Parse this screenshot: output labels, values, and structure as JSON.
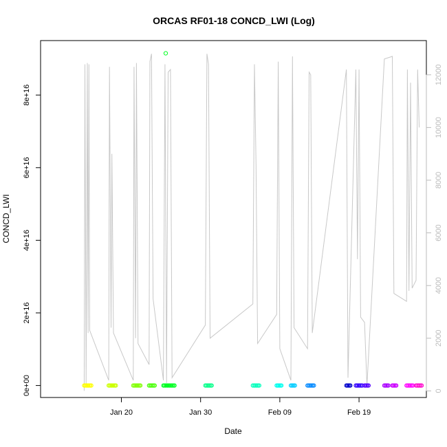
{
  "chart_data": {
    "type": "scatter",
    "title": "ORCAS RF01-18 CONCD_LWI (Log)",
    "xlabel": "Date",
    "ylabel": "CONCD_LWI",
    "x_ticks": [
      {
        "date": "Jan 20",
        "day": 20
      },
      {
        "date": "Jan 30",
        "day": 30
      },
      {
        "date": "Feb 09",
        "day": 40
      },
      {
        "date": "Feb 19",
        "day": 50
      }
    ],
    "xlim_days": [
      9.8,
      58.5
    ],
    "y_ticks": [
      {
        "label": "0e+00",
        "value": 0
      },
      {
        "label": "2e+16",
        "value": 2e+16
      },
      {
        "label": "4e+16",
        "value": 4e+16
      },
      {
        "label": "6e+16",
        "value": 6e+16
      },
      {
        "label": "8e+16",
        "value": 8e+16
      }
    ],
    "ylim": [
      -3300000000000000.0,
      9.5e+16
    ],
    "y2_ticks": [
      {
        "label": "0",
        "value": 0
      },
      {
        "label": "2000",
        "value": 2000
      },
      {
        "label": "4000",
        "value": 4000
      },
      {
        "label": "6000",
        "value": 6000
      },
      {
        "label": "8000",
        "value": 8000
      },
      {
        "label": "10000",
        "value": 10000
      },
      {
        "label": "12000",
        "value": 12000
      }
    ],
    "y2lim": [
      -250,
      13300
    ],
    "series": [
      {
        "color": "#ffff00",
        "x_range": [
          15.3,
          16.2
        ],
        "values": [
          0
        ]
      },
      {
        "color": "#ccff00",
        "x_range": [
          18.4,
          19.3
        ],
        "values": [
          0
        ]
      },
      {
        "color": "#80ff00",
        "x_range": [
          21.5,
          22.4
        ],
        "values": [
          0
        ]
      },
      {
        "color": "#44ff00",
        "x_range": [
          23.5,
          24.2
        ],
        "values": [
          0
        ]
      },
      {
        "color": "#00ff22",
        "x_range": [
          25.3,
          26.7
        ],
        "outlier": {
          "x": 25.6,
          "y": 9.15e+16
        },
        "values": [
          0
        ]
      },
      {
        "color": "#00ff88",
        "x_range": [
          30.6,
          31.4
        ],
        "values": [
          0
        ]
      },
      {
        "color": "#00ffbb",
        "x_range": [
          36.6,
          37.4
        ],
        "values": [
          0
        ]
      },
      {
        "color": "#00ffee",
        "x_range": [
          39.6,
          40.2
        ],
        "values": [
          0
        ]
      },
      {
        "color": "#00ccff",
        "x_range": [
          41.4,
          41.9
        ],
        "values": [
          0
        ]
      },
      {
        "color": "#0088ff",
        "x_range": [
          43.5,
          44.3
        ],
        "values": [
          0
        ]
      },
      {
        "color": "#0000cc",
        "x_range": [
          48.4,
          48.9
        ],
        "values": [
          0
        ]
      },
      {
        "color": "#3300ff",
        "x_range": [
          49.6,
          50.4
        ],
        "values": [
          0
        ]
      },
      {
        "color": "#5500ff",
        "x_range": [
          50.7,
          51.2
        ],
        "values": [
          0
        ]
      },
      {
        "color": "#aa00ff",
        "x_range": [
          53.2,
          53.7
        ],
        "values": [
          0
        ]
      },
      {
        "color": "#cc00ff",
        "x_range": [
          54.2,
          54.7
        ],
        "values": [
          0
        ]
      },
      {
        "color": "#ff00ff",
        "x_range": [
          56.0,
          56.8
        ],
        "values": [
          0
        ]
      },
      {
        "color": "#ff00cc",
        "x_range": [
          57.2,
          57.9
        ],
        "values": [
          0
        ]
      }
    ],
    "altitude_line_color": "#c8c8c8",
    "altitude_trace": [
      [
        15.3,
        0
      ],
      [
        15.4,
        12400
      ],
      [
        15.55,
        200
      ],
      [
        15.7,
        12450
      ],
      [
        15.8,
        2200
      ],
      [
        15.9,
        12400
      ],
      [
        16.0,
        2300
      ],
      [
        18.4,
        400
      ],
      [
        18.5,
        12300
      ],
      [
        18.7,
        2400
      ],
      [
        18.8,
        9000
      ],
      [
        19.0,
        2200
      ],
      [
        21.5,
        400
      ],
      [
        21.6,
        12300
      ],
      [
        21.8,
        2000
      ],
      [
        21.9,
        12450
      ],
      [
        22.1,
        1800
      ],
      [
        23.5,
        1000
      ],
      [
        23.6,
        12500
      ],
      [
        23.8,
        12800
      ],
      [
        24.0,
        3500
      ],
      [
        25.3,
        400
      ],
      [
        25.5,
        12400
      ],
      [
        25.7,
        300
      ],
      [
        25.9,
        12100
      ],
      [
        26.2,
        12200
      ],
      [
        26.4,
        500
      ],
      [
        30.6,
        2500
      ],
      [
        30.8,
        12800
      ],
      [
        31.0,
        12400
      ],
      [
        31.2,
        2000
      ],
      [
        36.6,
        3300
      ],
      [
        36.8,
        12400
      ],
      [
        37.0,
        8600
      ],
      [
        37.2,
        1800
      ],
      [
        39.6,
        2900
      ],
      [
        39.8,
        12500
      ],
      [
        40.0,
        1600
      ],
      [
        41.4,
        400
      ],
      [
        41.6,
        12700
      ],
      [
        41.8,
        2400
      ],
      [
        43.5,
        1600
      ],
      [
        43.7,
        12100
      ],
      [
        43.9,
        12000
      ],
      [
        44.1,
        2200
      ],
      [
        48.4,
        12200
      ],
      [
        48.6,
        500
      ],
      [
        49.6,
        12200
      ],
      [
        49.8,
        5000
      ],
      [
        50.0,
        12200
      ],
      [
        50.2,
        2800
      ],
      [
        50.7,
        2600
      ],
      [
        51.0,
        200
      ],
      [
        53.2,
        12600
      ],
      [
        54.2,
        12700
      ],
      [
        54.4,
        3700
      ],
      [
        56.0,
        3400
      ],
      [
        56.1,
        12200
      ],
      [
        56.3,
        3800
      ],
      [
        56.5,
        11700
      ],
      [
        56.7,
        3900
      ],
      [
        57.2,
        4200
      ],
      [
        57.4,
        12200
      ],
      [
        57.6,
        10000
      ]
    ]
  }
}
